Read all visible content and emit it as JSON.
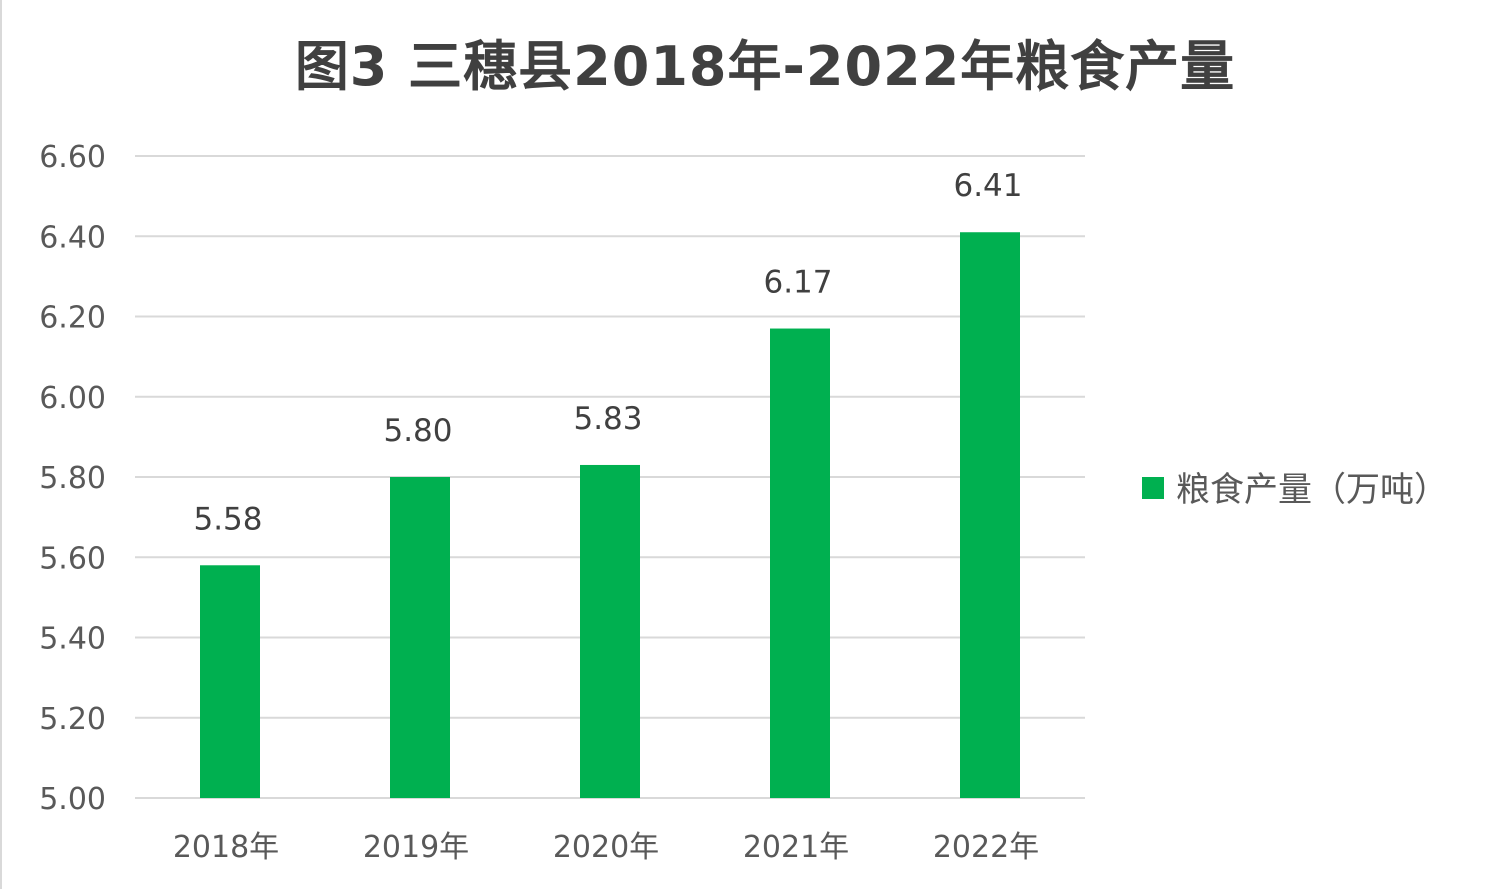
{
  "chart_data": {
    "type": "bar",
    "title": "图3 三穗县2018年-2022年粮食产量",
    "categories": [
      "2018年",
      "2019年",
      "2020年",
      "2021年",
      "2022年"
    ],
    "series": [
      {
        "name": "粮食产量（万吨）",
        "values": [
          5.58,
          5.8,
          5.83,
          6.17,
          6.41
        ],
        "data_labels": [
          "5.58",
          "5.80",
          "5.83",
          "6.17",
          "6.41"
        ],
        "color": "#00b050"
      }
    ],
    "ylim": [
      5.0,
      6.6
    ],
    "yticks": [
      5.0,
      5.2,
      5.4,
      5.6,
      5.8,
      6.0,
      6.2,
      6.4,
      6.6
    ],
    "ytick_labels": [
      "5.00",
      "5.20",
      "5.40",
      "5.60",
      "5.80",
      "6.00",
      "6.20",
      "6.40",
      "6.60"
    ],
    "xlabel": "",
    "ylabel": "",
    "grid": true,
    "grid_color": "#d9d9d9",
    "legend_position": "right"
  }
}
